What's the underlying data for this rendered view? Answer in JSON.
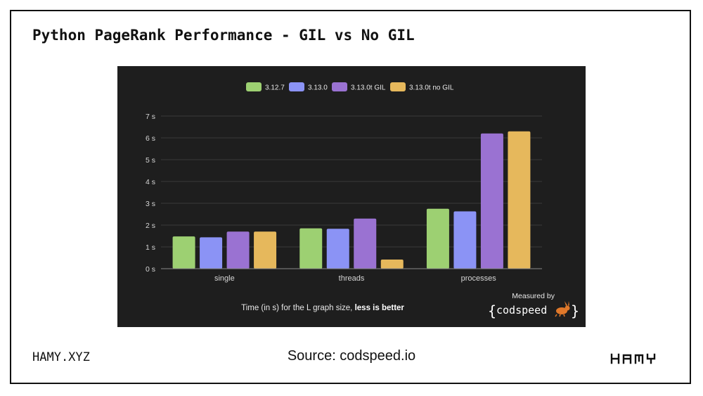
{
  "slide": {
    "title": "Python PageRank Performance - GIL vs No GIL",
    "footer_left": "HAMY.XYZ",
    "footer_center": "Source: codspeed.io",
    "footer_logo": "HAMY"
  },
  "chart_data": {
    "type": "bar",
    "categories": [
      "single",
      "threads",
      "processes"
    ],
    "series": [
      {
        "name": "3.12.7",
        "color": "#9dd072",
        "values": [
          1.48,
          1.85,
          2.75
        ]
      },
      {
        "name": "3.13.0",
        "color": "#8b93f5",
        "values": [
          1.44,
          1.83,
          2.63
        ]
      },
      {
        "name": "3.13.0t GIL",
        "color": "#9a72d2",
        "values": [
          1.7,
          2.3,
          6.2
        ]
      },
      {
        "name": "3.13.0t no GIL",
        "color": "#e6b85c",
        "values": [
          1.7,
          0.42,
          6.3
        ]
      }
    ],
    "y_ticks": [
      "0 s",
      "1 s",
      "2 s",
      "3 s",
      "4 s",
      "5 s",
      "6 s",
      "7 s"
    ],
    "ylim": [
      0,
      7
    ],
    "grid": true,
    "legend_position": "top-center",
    "caption_prefix": "Time (in s) for the L graph size, ",
    "caption_bold": "less is better",
    "badge_label": "Measured by",
    "badge_brand": "codspeed",
    "badge_brace_open": "{",
    "badge_brace_close": "}"
  },
  "colors": {
    "panel_bg": "#1e1e1e",
    "grid": "#3a3a3a",
    "axis_text": "#d6d6d6",
    "accent_orange": "#e0782a"
  }
}
